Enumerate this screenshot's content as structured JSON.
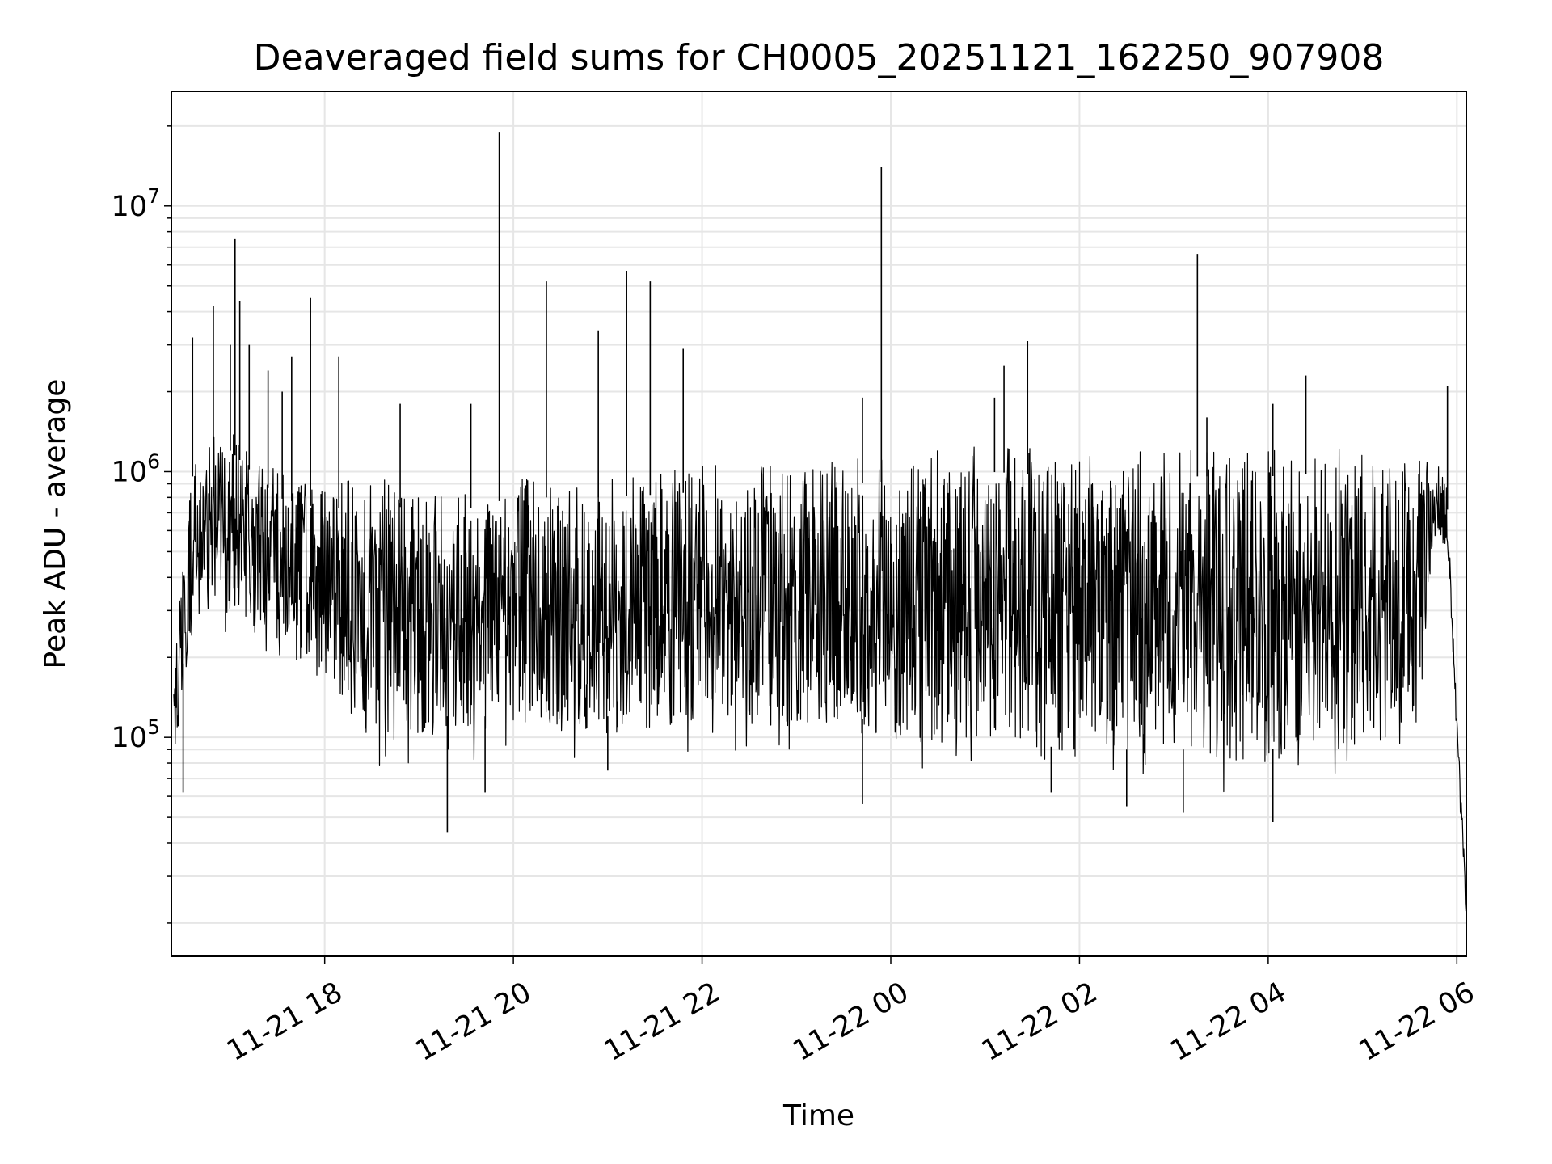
{
  "chart_data": {
    "type": "line",
    "title": "Deaveraged field sums for CH0005_20251121_162250_907908",
    "xlabel": "Time",
    "ylabel": "Peak ADU - average",
    "yscale": "log",
    "ylim": [
      15000,
      27000000
    ],
    "xlim_hours": [
      16.375,
      30.1
    ],
    "x_ticks": [
      {
        "hour": 18,
        "label": "11-21 18"
      },
      {
        "hour": 20,
        "label": "11-21 20"
      },
      {
        "hour": 22,
        "label": "11-21 22"
      },
      {
        "hour": 24,
        "label": "11-22 00"
      },
      {
        "hour": 26,
        "label": "11-22 02"
      },
      {
        "hour": 28,
        "label": "11-22 04"
      },
      {
        "hour": 30,
        "label": "11-22 06"
      }
    ],
    "y_ticks": [
      {
        "value": 100000,
        "base": "10",
        "exp": "5"
      },
      {
        "value": 1000000,
        "base": "10",
        "exp": "6"
      },
      {
        "value": 10000000,
        "base": "10",
        "exp": "7"
      }
    ],
    "grid": true,
    "line_color": "#000000",
    "grid_color": "#e6e6e6",
    "series": [
      {
        "name": "Peak ADU - average",
        "envelope": [
          {
            "hour": 16.4,
            "low": 80000,
            "high": 180000
          },
          {
            "hour": 16.6,
            "low": 200000,
            "high": 1200000
          },
          {
            "hour": 17.0,
            "low": 250000,
            "high": 1500000
          },
          {
            "hour": 17.5,
            "low": 170000,
            "high": 1000000
          },
          {
            "hour": 18.0,
            "low": 150000,
            "high": 900000
          },
          {
            "hour": 18.5,
            "low": 70000,
            "high": 950000
          },
          {
            "hour": 19.0,
            "low": 80000,
            "high": 900000
          },
          {
            "hour": 19.5,
            "low": 80000,
            "high": 900000
          },
          {
            "hour": 20.0,
            "low": 80000,
            "high": 1000000
          },
          {
            "hour": 21.0,
            "low": 80000,
            "high": 1000000
          },
          {
            "hour": 22.0,
            "low": 90000,
            "high": 1050000
          },
          {
            "hour": 23.0,
            "low": 85000,
            "high": 1100000
          },
          {
            "hour": 24.0,
            "low": 75000,
            "high": 1150000
          },
          {
            "hour": 25.0,
            "low": 65000,
            "high": 1250000
          },
          {
            "hour": 26.0,
            "low": 60000,
            "high": 1200000
          },
          {
            "hour": 27.0,
            "low": 60000,
            "high": 1200000
          },
          {
            "hour": 28.0,
            "low": 60000,
            "high": 1200000
          },
          {
            "hour": 29.0,
            "low": 70000,
            "high": 1250000
          },
          {
            "hour": 29.6,
            "low": 80000,
            "high": 1100000
          },
          {
            "hour": 29.75,
            "low": 500000,
            "high": 1200000
          },
          {
            "hour": 29.9,
            "low": 500000,
            "high": 900000
          },
          {
            "hour": 30.0,
            "low": 90000,
            "high": 120000
          },
          {
            "hour": 30.1,
            "low": 19000,
            "high": 30000
          }
        ],
        "spikes": [
          {
            "hour": 16.6,
            "value": 3200000
          },
          {
            "hour": 16.82,
            "value": 4200000
          },
          {
            "hour": 17.0,
            "value": 3000000
          },
          {
            "hour": 17.05,
            "value": 7500000
          },
          {
            "hour": 17.1,
            "value": 4400000
          },
          {
            "hour": 17.2,
            "value": 3000000
          },
          {
            "hour": 17.4,
            "value": 2400000
          },
          {
            "hour": 17.55,
            "value": 2000000
          },
          {
            "hour": 17.65,
            "value": 2700000
          },
          {
            "hour": 17.85,
            "value": 4500000
          },
          {
            "hour": 18.15,
            "value": 2700000
          },
          {
            "hour": 18.8,
            "value": 1800000
          },
          {
            "hour": 19.55,
            "value": 1800000
          },
          {
            "hour": 19.85,
            "value": 19000000
          },
          {
            "hour": 20.35,
            "value": 5200000
          },
          {
            "hour": 20.9,
            "value": 3400000
          },
          {
            "hour": 21.2,
            "value": 5700000
          },
          {
            "hour": 21.45,
            "value": 5200000
          },
          {
            "hour": 21.8,
            "value": 2900000
          },
          {
            "hour": 23.7,
            "value": 1900000
          },
          {
            "hour": 23.9,
            "value": 14000000
          },
          {
            "hour": 25.1,
            "value": 1900000
          },
          {
            "hour": 25.2,
            "value": 2500000
          },
          {
            "hour": 25.45,
            "value": 3100000
          },
          {
            "hour": 27.25,
            "value": 6600000
          },
          {
            "hour": 27.35,
            "value": 1600000
          },
          {
            "hour": 28.05,
            "value": 1800000
          },
          {
            "hour": 28.4,
            "value": 2300000
          },
          {
            "hour": 29.9,
            "value": 2100000
          }
        ],
        "dips": [
          {
            "hour": 16.5,
            "value": 62000
          },
          {
            "hour": 19.3,
            "value": 44000
          },
          {
            "hour": 19.7,
            "value": 62000
          },
          {
            "hour": 21.0,
            "value": 75000
          },
          {
            "hour": 23.7,
            "value": 56000
          },
          {
            "hour": 25.7,
            "value": 62000
          },
          {
            "hour": 26.5,
            "value": 55000
          },
          {
            "hour": 27.1,
            "value": 52000
          },
          {
            "hour": 28.05,
            "value": 48000
          }
        ]
      }
    ]
  }
}
